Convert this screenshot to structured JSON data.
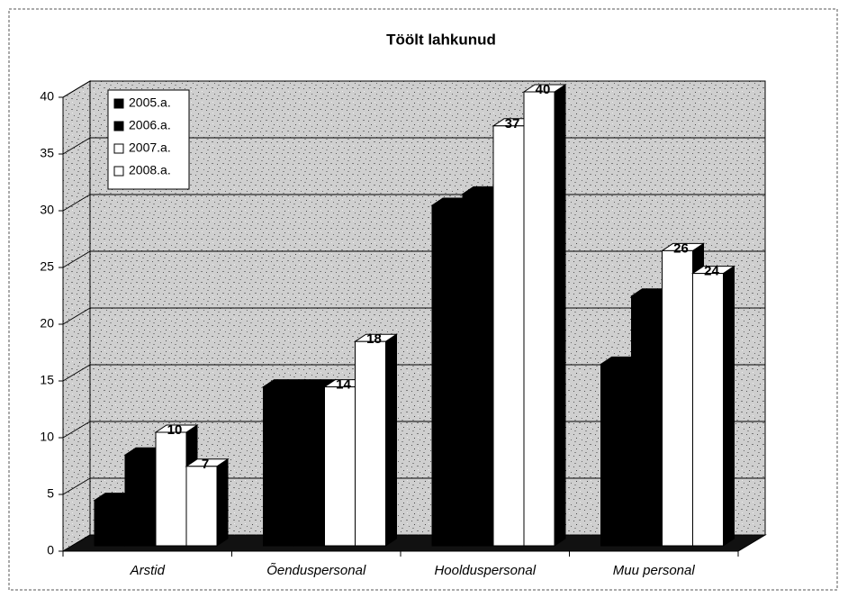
{
  "chart_data": {
    "type": "bar3d",
    "title": "Töölt lahkunud",
    "categories": [
      "Arstid",
      "Õenduspersonal",
      "Hoolduspersonal",
      "Muu personal"
    ],
    "series": [
      {
        "name": "2005.a.",
        "color": "#000000",
        "values": [
          4,
          14,
          30,
          16
        ]
      },
      {
        "name": "2006.a.",
        "color": "#000000",
        "values": [
          8,
          14,
          31,
          22
        ]
      },
      {
        "name": "2007.a.",
        "color": "#ffffff",
        "values": [
          10,
          14,
          37,
          26
        ]
      },
      {
        "name": "2008.a.",
        "color": "#ffffff",
        "values": [
          7,
          18,
          40,
          24
        ]
      }
    ],
    "ylim": [
      0,
      40
    ],
    "yticks": [
      0,
      5,
      10,
      15,
      20,
      25,
      30,
      35,
      40
    ],
    "grid": true,
    "legend": "top-left"
  }
}
